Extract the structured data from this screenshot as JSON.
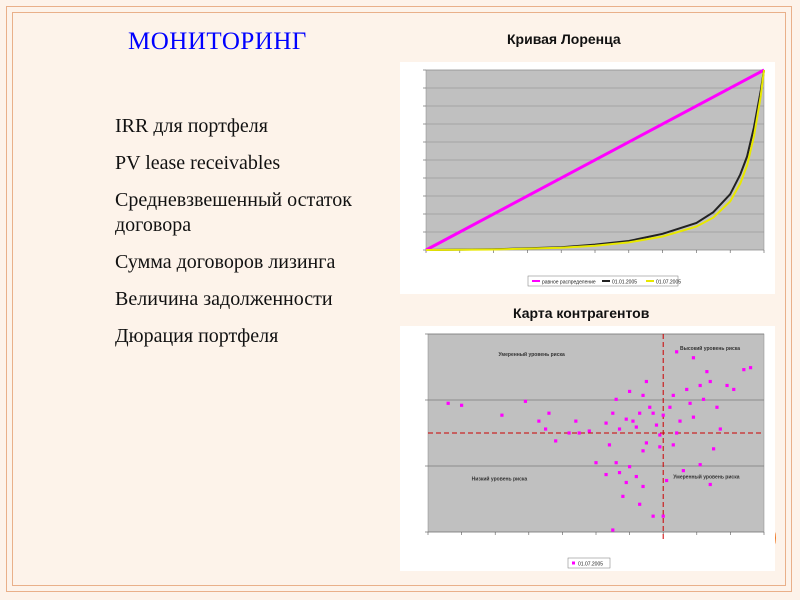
{
  "slide": {
    "title": "МОНИТОРИНГ",
    "items": [
      "IRR для портфеля",
      "PV lease receivables",
      "Средневзвешенный остаток договора",
      "Сумма договоров лизинга",
      "Величина задолженности",
      "Дюрация портфеля"
    ]
  },
  "colors": {
    "title": "#0000ff",
    "background": "#fdf3ea",
    "frame": "#e9b08a",
    "equality_line": "#ff00ff",
    "curve_2005": "#222222",
    "curve_2005b": "#e8e800",
    "scatter_points": "#ff00ff",
    "plot_area": "#c0c0c0",
    "accent_circle": "#f07a28"
  },
  "chart_data": [
    {
      "type": "line",
      "title": "Кривая Лоренца",
      "xlim": [
        0,
        1
      ],
      "ylim": [
        0,
        1
      ],
      "grid": true,
      "legend_placement": "bottom",
      "series": [
        {
          "name": "равное распределение",
          "points": [
            [
              0,
              0
            ],
            [
              1,
              1
            ]
          ],
          "color": "#ff00ff"
        },
        {
          "name": "01.01.2005",
          "points": [
            [
              0,
              0
            ],
            [
              0.2,
              0.004
            ],
            [
              0.4,
              0.015
            ],
            [
              0.5,
              0.03
            ],
            [
              0.6,
              0.05
            ],
            [
              0.7,
              0.09
            ],
            [
              0.8,
              0.15
            ],
            [
              0.85,
              0.21
            ],
            [
              0.9,
              0.31
            ],
            [
              0.93,
              0.42
            ],
            [
              0.95,
              0.52
            ],
            [
              0.97,
              0.68
            ],
            [
              0.99,
              0.88
            ],
            [
              1,
              1
            ]
          ],
          "color": "#222222"
        },
        {
          "name": "01.07.2005",
          "points": [
            [
              0,
              0
            ],
            [
              0.2,
              0.003
            ],
            [
              0.4,
              0.012
            ],
            [
              0.5,
              0.024
            ],
            [
              0.6,
              0.042
            ],
            [
              0.7,
              0.075
            ],
            [
              0.8,
              0.13
            ],
            [
              0.85,
              0.18
            ],
            [
              0.9,
              0.27
            ],
            [
              0.93,
              0.37
            ],
            [
              0.95,
              0.47
            ],
            [
              0.97,
              0.63
            ],
            [
              0.99,
              0.85
            ],
            [
              1,
              1
            ]
          ],
          "color": "#e8e800"
        }
      ]
    },
    {
      "type": "scatter",
      "title": "Карта контрагентов",
      "xlim": [
        0,
        10
      ],
      "ylim": [
        0,
        10
      ],
      "grid": true,
      "legend_placement": "bottom",
      "reference_lines": {
        "x": 7,
        "y": 5
      },
      "quadrant_labels": [
        "Умеренный уровень риска",
        "Высокий уровень риска",
        "Низкий уровень риска",
        "Умеренный уровень риска"
      ],
      "series": [
        {
          "name": "01.07.2005",
          "color": "#ff00ff",
          "points": [
            [
              0.6,
              6.5
            ],
            [
              1.0,
              6.4
            ],
            [
              2.2,
              5.9
            ],
            [
              2.9,
              6.6
            ],
            [
              3.3,
              5.6
            ],
            [
              3.6,
              6.0
            ],
            [
              3.5,
              5.2
            ],
            [
              3.8,
              4.6
            ],
            [
              4.2,
              5.0
            ],
            [
              4.4,
              5.6
            ],
            [
              4.8,
              5.1
            ],
            [
              4.5,
              5.0
            ],
            [
              5.3,
              5.5
            ],
            [
              5.5,
              6.0
            ],
            [
              5.6,
              6.7
            ],
            [
              5.7,
              5.2
            ],
            [
              5.9,
              5.7
            ],
            [
              6.0,
              7.1
            ],
            [
              6.1,
              5.6
            ],
            [
              6.2,
              5.3
            ],
            [
              6.3,
              6.0
            ],
            [
              6.4,
              6.9
            ],
            [
              6.5,
              7.6
            ],
            [
              6.6,
              6.3
            ],
            [
              6.7,
              6.0
            ],
            [
              6.8,
              5.4
            ],
            [
              6.9,
              4.9
            ],
            [
              6.5,
              4.5
            ],
            [
              6.4,
              4.1
            ],
            [
              6.9,
              4.3
            ],
            [
              7.0,
              5.9
            ],
            [
              7.2,
              6.3
            ],
            [
              7.3,
              6.9
            ],
            [
              7.4,
              5.0
            ],
            [
              7.5,
              5.6
            ],
            [
              7.7,
              7.2
            ],
            [
              7.8,
              6.5
            ],
            [
              7.9,
              5.8
            ],
            [
              8.1,
              7.4
            ],
            [
              8.2,
              6.7
            ],
            [
              8.3,
              8.1
            ],
            [
              8.4,
              7.6
            ],
            [
              8.6,
              6.3
            ],
            [
              8.7,
              5.2
            ],
            [
              8.9,
              7.4
            ],
            [
              9.1,
              7.2
            ],
            [
              9.4,
              8.2
            ],
            [
              9.6,
              8.3
            ],
            [
              7.4,
              9.1
            ],
            [
              7.9,
              8.8
            ],
            [
              8.5,
              4.2
            ],
            [
              7.6,
              3.1
            ],
            [
              7.3,
              4.4
            ],
            [
              5.9,
              2.5
            ],
            [
              6.0,
              3.3
            ],
            [
              5.7,
              3.0
            ],
            [
              6.2,
              2.8
            ],
            [
              6.3,
              1.4
            ],
            [
              6.7,
              0.8
            ],
            [
              5.4,
              4.4
            ],
            [
              5.0,
              3.5
            ],
            [
              6.4,
              2.3
            ],
            [
              5.3,
              2.9
            ],
            [
              5.6,
              3.5
            ],
            [
              5.8,
              1.8
            ],
            [
              5.5,
              0.1
            ],
            [
              7.0,
              0.8
            ],
            [
              8.1,
              3.4
            ],
            [
              8.4,
              2.4
            ],
            [
              7.1,
              2.6
            ]
          ]
        }
      ]
    }
  ]
}
